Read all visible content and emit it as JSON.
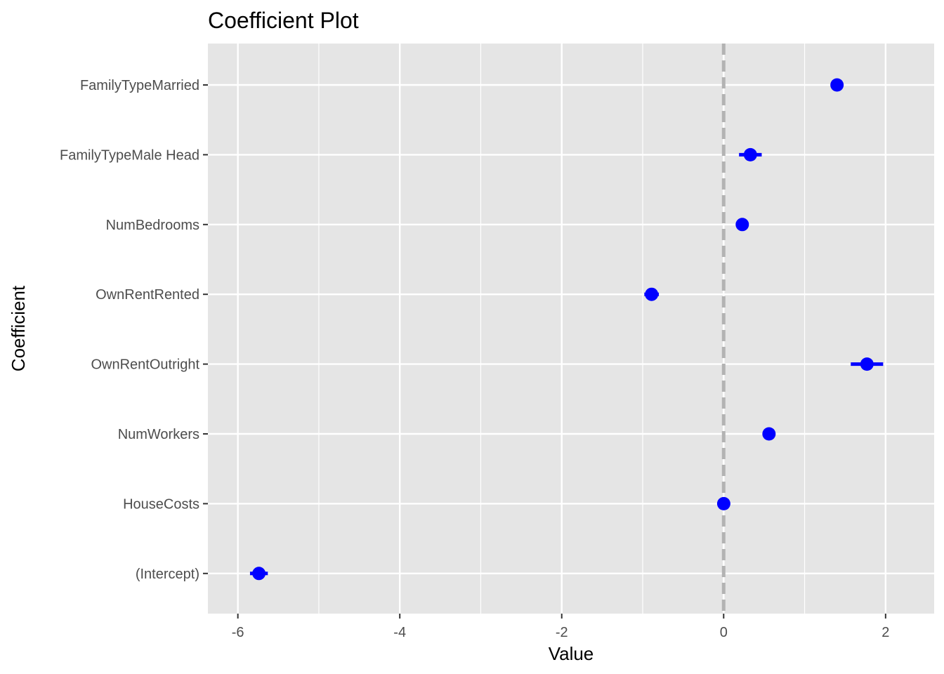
{
  "chart_data": {
    "type": "scatter",
    "subtype": "coefficient-plot",
    "title": "Coefficient Plot",
    "xlabel": "Value",
    "ylabel": "Coefficient",
    "xlim": [
      -6.37,
      2.6
    ],
    "x_ticks": [
      -6,
      -4,
      -2,
      0,
      2
    ],
    "x_tick_labels": [
      "-6",
      "-4",
      "-2",
      "0",
      "2"
    ],
    "reference_line": {
      "x": 0,
      "style": "dashed",
      "color": "#b3b3b3"
    },
    "grid": true,
    "legend": "none",
    "colors": {
      "panel_background": "#e5e5e5",
      "grid": "#ffffff",
      "point": "#0000ff",
      "reference_line": "#b3b3b3"
    },
    "categories": [
      "FamilyTypeMarried",
      "FamilyTypeMale Head",
      "NumBedrooms",
      "OwnRentRented",
      "OwnRentOutright",
      "NumWorkers",
      "HouseCosts",
      "(Intercept)"
    ],
    "points": [
      {
        "coefficient": "FamilyTypeMarried",
        "value": 1.4,
        "low": 1.36,
        "high": 1.44
      },
      {
        "coefficient": "FamilyTypeMale Head",
        "value": 0.33,
        "low": 0.19,
        "high": 0.47
      },
      {
        "coefficient": "NumBedrooms",
        "value": 0.23,
        "low": 0.21,
        "high": 0.25
      },
      {
        "coefficient": "OwnRentRented",
        "value": -0.89,
        "low": -0.98,
        "high": -0.8
      },
      {
        "coefficient": "OwnRentOutright",
        "value": 1.77,
        "low": 1.57,
        "high": 1.97
      },
      {
        "coefficient": "NumWorkers",
        "value": 0.56,
        "low": 0.54,
        "high": 0.58
      },
      {
        "coefficient": "HouseCosts",
        "value": 0.001,
        "low": 0.0,
        "high": 0.002
      },
      {
        "coefficient": "(Intercept)",
        "value": -5.74,
        "low": -5.85,
        "high": -5.63
      }
    ]
  }
}
